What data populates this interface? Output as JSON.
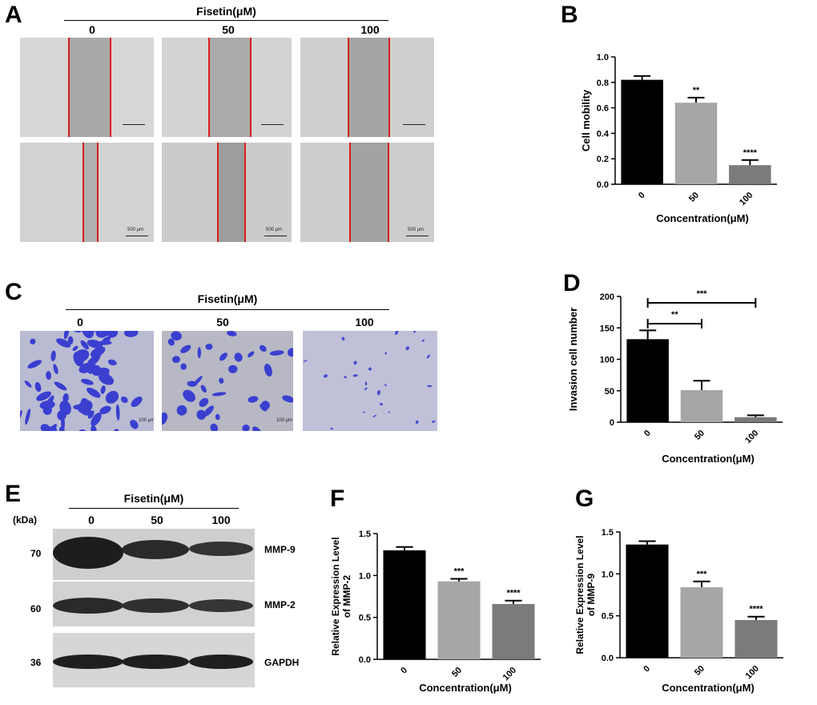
{
  "panel_labels": {
    "A": "A",
    "B": "B",
    "C": "C",
    "D": "D",
    "E": "E",
    "F": "F",
    "G": "G"
  },
  "panelA": {
    "header": "Fisetin(μM)",
    "concentrations": [
      "0",
      "50",
      "100"
    ],
    "scale_bar": "500 μm"
  },
  "panelC": {
    "header": "Fisetin(μM)",
    "concentrations": [
      "0",
      "50",
      "100"
    ],
    "scale_bar": "100 μm"
  },
  "panelE": {
    "header": "Fisetin(μM)",
    "kda_label": "(kDa)",
    "concentrations": [
      "0",
      "50",
      "100"
    ],
    "bands": [
      {
        "kda": "70",
        "name": "MMP-9"
      },
      {
        "kda": "60",
        "name": "MMP-2"
      },
      {
        "kda": "36",
        "name": "GAPDH"
      }
    ]
  },
  "colors": {
    "bar0": "#000000",
    "bar50": "#a6a6a8",
    "bar100": "#7b7b7b",
    "stain": "#3a3fd0",
    "red_line": "#d81c1c"
  },
  "chart_data": [
    {
      "panel": "B",
      "type": "bar",
      "categories": [
        "0",
        "50",
        "100"
      ],
      "values": [
        0.82,
        0.64,
        0.15
      ],
      "errors": [
        0.03,
        0.04,
        0.04
      ],
      "significance": [
        "",
        "**",
        "****"
      ],
      "xlabel": "Concentration(μM)",
      "ylabel": "Cell mobility",
      "ylim": [
        0,
        1.0
      ],
      "yticks": [
        "0.0",
        "0.2",
        "0.4",
        "0.6",
        "0.8",
        "1.0"
      ],
      "tick_values": [
        0,
        0.2,
        0.4,
        0.6,
        0.8,
        1.0
      ]
    },
    {
      "panel": "D",
      "type": "bar",
      "categories": [
        "0",
        "50",
        "100"
      ],
      "values": [
        132,
        51,
        8
      ],
      "errors": [
        14,
        15,
        3
      ],
      "brackets": [
        {
          "from": 0,
          "to": 1,
          "label": "**"
        },
        {
          "from": 0,
          "to": 2,
          "label": "***"
        }
      ],
      "xlabel": "Concentration(μM)",
      "ylabel": "Invasion cell number",
      "ylim": [
        0,
        200
      ],
      "yticks": [
        "0",
        "50",
        "100",
        "150",
        "200"
      ],
      "tick_values": [
        0,
        50,
        100,
        150,
        200
      ]
    },
    {
      "panel": "F",
      "type": "bar",
      "categories": [
        "0",
        "50",
        "100"
      ],
      "values": [
        1.3,
        0.93,
        0.66
      ],
      "errors": [
        0.04,
        0.03,
        0.04
      ],
      "significance": [
        "",
        "***",
        "****"
      ],
      "xlabel": "Concentration(μM)",
      "ylabel": [
        "Relative Expression  Level",
        "of MMP-2"
      ],
      "ylim": [
        0,
        1.5
      ],
      "yticks": [
        "0.0",
        "0.5",
        "1.0",
        "1.5"
      ],
      "tick_values": [
        0,
        0.5,
        1.0,
        1.5
      ]
    },
    {
      "panel": "G",
      "type": "bar",
      "categories": [
        "0",
        "50",
        "100"
      ],
      "values": [
        1.35,
        0.84,
        0.45
      ],
      "errors": [
        0.04,
        0.07,
        0.04
      ],
      "significance": [
        "",
        "***",
        "****"
      ],
      "xlabel": "Concentration(μM)",
      "ylabel": [
        "Relative Expression  Level",
        "of MMP-9"
      ],
      "ylim": [
        0,
        1.5
      ],
      "yticks": [
        "0.0",
        "0.5",
        "1.0",
        "1.5"
      ],
      "tick_values": [
        0,
        0.5,
        1.0,
        1.5
      ]
    }
  ]
}
